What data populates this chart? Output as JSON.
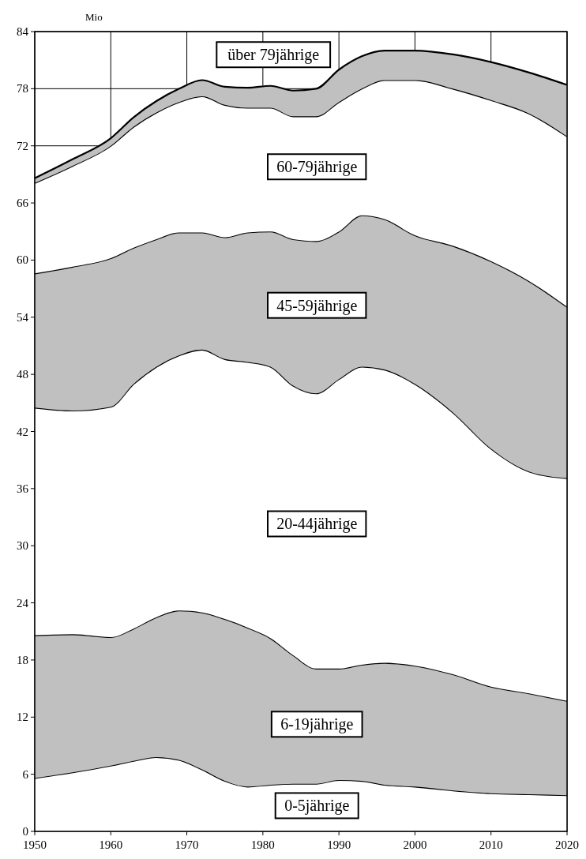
{
  "chart_data": {
    "type": "area",
    "stacked": true,
    "ylabel": "Mio",
    "x": [
      1950,
      1955,
      1960,
      1963,
      1966,
      1969,
      1972,
      1975,
      1978,
      1981,
      1984,
      1987,
      1990,
      1993,
      1996,
      2000,
      2005,
      2010,
      2015,
      2020
    ],
    "xlim": [
      1950,
      2020
    ],
    "xticks": [
      1950,
      1960,
      1970,
      1980,
      1990,
      2000,
      2010,
      2020
    ],
    "ylim": [
      0,
      84
    ],
    "yticks": [
      0,
      6,
      12,
      18,
      24,
      30,
      36,
      42,
      48,
      54,
      60,
      66,
      72,
      78,
      84
    ],
    "grid": true,
    "legend": false,
    "series": [
      {
        "name": "0-5jährige",
        "color": "#ffffff",
        "values": [
          5.6,
          6.2,
          6.9,
          7.4,
          7.8,
          7.5,
          6.5,
          5.3,
          4.7,
          4.9,
          5.0,
          5.0,
          5.4,
          5.3,
          4.9,
          4.7,
          4.3,
          4.0,
          3.9,
          3.8
        ]
      },
      {
        "name": "6-19jährige",
        "color": "#c0c0c0",
        "values": [
          15.0,
          14.5,
          13.5,
          13.9,
          14.7,
          15.7,
          16.5,
          17.0,
          16.7,
          15.4,
          13.5,
          12.1,
          11.7,
          12.2,
          12.8,
          12.7,
          12.2,
          11.2,
          10.6,
          9.9
        ]
      },
      {
        "name": "20-44jährige",
        "color": "#ffffff",
        "values": [
          23.9,
          23.5,
          24.2,
          25.7,
          26.3,
          26.8,
          27.6,
          27.3,
          27.9,
          28.5,
          28.3,
          28.9,
          30.4,
          31.3,
          30.8,
          29.6,
          27.5,
          25.0,
          23.3,
          23.4
        ]
      },
      {
        "name": "45-59jährige",
        "color": "#c0c0c0",
        "values": [
          14.1,
          15.1,
          15.6,
          14.3,
          13.4,
          12.9,
          12.3,
          12.8,
          13.6,
          14.2,
          15.4,
          16.0,
          15.5,
          15.9,
          15.8,
          15.6,
          17.5,
          19.7,
          20.0,
          18.0
        ]
      },
      {
        "name": "60-79jährige",
        "color": "#ffffff",
        "values": [
          9.5,
          10.6,
          11.8,
          12.7,
          13.3,
          13.7,
          14.3,
          13.9,
          13.1,
          13.0,
          12.9,
          13.1,
          13.6,
          13.3,
          14.6,
          16.3,
          16.5,
          16.9,
          17.6,
          17.9
        ]
      },
      {
        "name": "über 79jährige",
        "color": "#c0c0c0",
        "values": [
          0.5,
          0.7,
          0.8,
          1.0,
          1.2,
          1.4,
          1.7,
          1.9,
          2.1,
          2.3,
          2.7,
          2.9,
          3.4,
          3.4,
          3.1,
          3.1,
          3.6,
          4.0,
          4.3,
          5.4
        ]
      }
    ]
  }
}
